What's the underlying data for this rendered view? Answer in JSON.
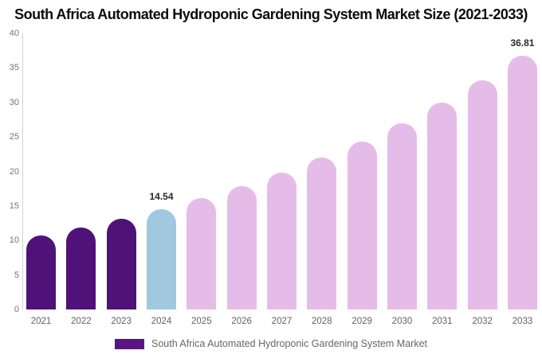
{
  "title": "South Africa Automated Hydroponic Gardening System Market Size (2021-2033)",
  "chart_data": {
    "type": "bar",
    "title": "South Africa Automated Hydroponic Gardening System Market Size (2021-2033)",
    "categories": [
      "2021",
      "2022",
      "2023",
      "2024",
      "2025",
      "2026",
      "2027",
      "2028",
      "2029",
      "2030",
      "2031",
      "2032",
      "2033"
    ],
    "values": [
      10.67,
      11.83,
      13.11,
      14.54,
      16.12,
      17.87,
      19.82,
      21.97,
      24.36,
      27.01,
      29.95,
      33.2,
      36.81
    ],
    "segments": [
      "historical",
      "historical",
      "historical",
      "current",
      "forecast",
      "forecast",
      "forecast",
      "forecast",
      "forecast",
      "forecast",
      "forecast",
      "forecast",
      "forecast"
    ],
    "bar_colors": {
      "historical": "#4f1278",
      "current": "#a0c8df",
      "forecast": "#e5bce8"
    },
    "data_labels": {
      "2024": "14.54",
      "2033": "36.81"
    },
    "xlabel": "",
    "ylabel": "",
    "ylim": [
      0,
      40
    ],
    "yticks": [
      0,
      5,
      10,
      15,
      20,
      25,
      30,
      35,
      40
    ],
    "grid": false,
    "legend_position": "bottom"
  },
  "legend": {
    "label": "South Africa Automated Hydroponic Gardening System Market",
    "swatch_color": "#5a1582"
  }
}
